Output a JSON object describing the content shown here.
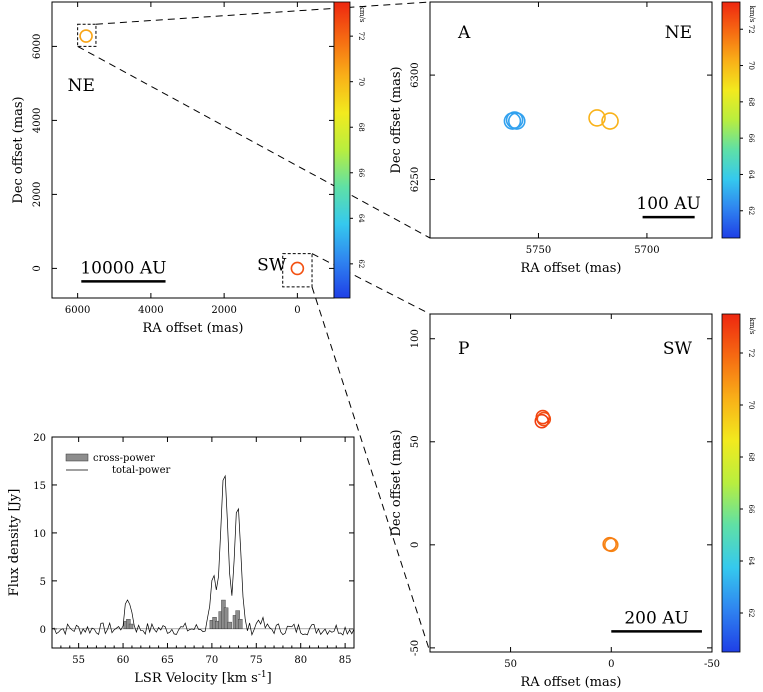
{
  "chart_data": [
    {
      "id": "overview",
      "type": "scatter",
      "xlabel": "RA offset (mas)",
      "ylabel": "Dec offset (mas)",
      "xlim": [
        6700,
        -1000
      ],
      "ylim": [
        -800,
        7200
      ],
      "xticks": [
        6000,
        4000,
        2000,
        0
      ],
      "yticks": [
        0,
        2000,
        4000,
        6000
      ],
      "annotations": [
        {
          "text": "NE",
          "x": 5900,
          "y": 4800
        },
        {
          "text": "SW",
          "x": 700,
          "y": -50
        }
      ],
      "scalebar": {
        "label": "10000 AU",
        "x0": 5900,
        "x1": 3600,
        "y": -350
      },
      "boxes": [
        {
          "x0": 6000,
          "x1": 5500,
          "y0": 6000,
          "y1": 6600
        },
        {
          "x0": 400,
          "x1": -400,
          "y0": -500,
          "y1": 400
        }
      ],
      "points": [
        {
          "x": 5770,
          "y": 6280,
          "v": 70.5
        },
        {
          "x": 0,
          "y": 0,
          "v": 72.5
        }
      ],
      "colorbar": {
        "label": "km/s",
        "ticks": [
          62,
          64,
          66,
          68,
          70,
          72
        ],
        "range": [
          60.5,
          73.5
        ]
      }
    },
    {
      "id": "panel-A",
      "type": "scatter",
      "xlabel": "RA offset (mas)",
      "ylabel": "Dec offset (mas)",
      "xlim": [
        5800,
        5670
      ],
      "ylim": [
        6222,
        6335
      ],
      "xticks": [
        5750,
        5700
      ],
      "yticks": [
        6250,
        6300
      ],
      "corner_left": "A",
      "corner_right": "NE",
      "scalebar": {
        "label": "100 AU",
        "x0": 5702,
        "x1": 5678,
        "y": 6232
      },
      "points": [
        {
          "x": 5762,
          "y": 6278,
          "v": 62.8
        },
        {
          "x": 5761,
          "y": 6278.5,
          "v": 62.8
        },
        {
          "x": 5760,
          "y": 6278,
          "v": 62.8
        },
        {
          "x": 5723,
          "y": 6279.5,
          "v": 70.2
        },
        {
          "x": 5717,
          "y": 6278,
          "v": 70.2
        }
      ],
      "colorbar": {
        "label": "km/s",
        "ticks": [
          62,
          64,
          66,
          68,
          70,
          72
        ],
        "range": [
          60.5,
          73.5
        ]
      }
    },
    {
      "id": "panel-P",
      "type": "scatter",
      "xlabel": "RA offset (mas)",
      "ylabel": "Dec offset (mas)",
      "xlim": [
        90,
        -50
      ],
      "ylim": [
        -52,
        112
      ],
      "xticks": [
        50,
        0,
        -50
      ],
      "yticks": [
        -50,
        0,
        50,
        100
      ],
      "corner_left": "P",
      "corner_right": "SW",
      "scalebar": {
        "label": "200 AU",
        "x0": 0,
        "x1": -45,
        "y": -42
      },
      "points": [
        {
          "x": 34,
          "y": 62,
          "v": 72.8
        },
        {
          "x": 34.5,
          "y": 60,
          "v": 73.0
        },
        {
          "x": 33.5,
          "y": 61,
          "v": 72.6
        },
        {
          "x": 0,
          "y": 0,
          "v": 71.2
        },
        {
          "x": 0.8,
          "y": 0.3,
          "v": 71.4
        }
      ],
      "colorbar": {
        "label": "km/s",
        "ticks": [
          62,
          64,
          66,
          68,
          70,
          72
        ],
        "range": [
          60.5,
          73.5
        ]
      }
    },
    {
      "id": "spectrum",
      "type": "line",
      "xlabel": "LSR Velocity [km s",
      "xlabel_sup": "-1",
      "xlabel_end": "]",
      "ylabel": "Flux density [Jy]",
      "xlim": [
        52,
        86
      ],
      "ylim": [
        -2,
        20
      ],
      "xticks": [
        55,
        60,
        65,
        70,
        75,
        80,
        85
      ],
      "yticks": [
        0,
        5,
        10,
        15,
        20
      ],
      "legend": [
        {
          "name": "cross-power",
          "kind": "bar"
        },
        {
          "name": "total-power",
          "kind": "line"
        }
      ],
      "total_peaks": [
        {
          "v": 60.6,
          "a": 3.2,
          "w": 0.35
        },
        {
          "v": 70.1,
          "a": 5.6,
          "w": 0.3
        },
        {
          "v": 71.4,
          "a": 16.1,
          "w": 0.4
        },
        {
          "v": 72.9,
          "a": 13.4,
          "w": 0.35
        },
        {
          "v": 75.4,
          "a": 1.1,
          "w": 0.3
        }
      ],
      "cross_power": [
        {
          "v": 60.3,
          "f": 0.8
        },
        {
          "v": 60.6,
          "f": 1.0
        },
        {
          "v": 60.9,
          "f": 0.5
        },
        {
          "v": 70.0,
          "f": 0.9
        },
        {
          "v": 70.3,
          "f": 1.2
        },
        {
          "v": 70.6,
          "f": 0.8
        },
        {
          "v": 71.0,
          "f": 1.8
        },
        {
          "v": 71.3,
          "f": 3.0
        },
        {
          "v": 71.6,
          "f": 2.2
        },
        {
          "v": 72.0,
          "f": 0.7
        },
        {
          "v": 72.6,
          "f": 1.4
        },
        {
          "v": 72.9,
          "f": 1.9
        },
        {
          "v": 73.2,
          "f": 1.0
        }
      ]
    }
  ],
  "colors": {
    "colorbar_stops": [
      "#1f3fe6",
      "#2f84f0",
      "#35c9ee",
      "#5fe0a6",
      "#b8ee3f",
      "#f2ea1e",
      "#f9b018",
      "#f66a12",
      "#ee2710"
    ],
    "bar_fill": "#8d8d8d"
  }
}
